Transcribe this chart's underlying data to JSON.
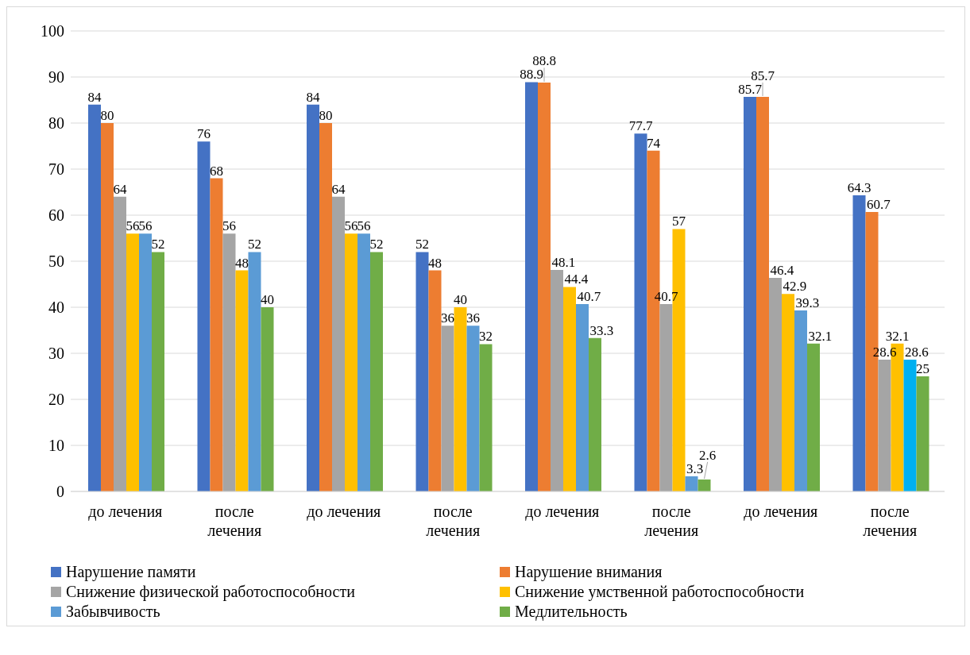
{
  "chart_data": {
    "type": "bar",
    "categories": [
      "до лечения",
      "после лечения",
      "до лечения",
      "после лечения",
      "до лечения",
      "после лечения",
      "до лечения",
      "после лечения"
    ],
    "series": [
      {
        "name": "Нарушение памяти",
        "color": "#4472c4",
        "values": [
          84,
          76,
          84,
          52,
          88.9,
          77.7,
          85.7,
          64.3
        ]
      },
      {
        "name": "Нарушение внимания",
        "color": "#ed7d31",
        "values": [
          80,
          68,
          80,
          48,
          88.8,
          74,
          85.7,
          60.7
        ]
      },
      {
        "name": "Снижение физической работоспособности",
        "color": "#a5a5a5",
        "values": [
          64,
          56,
          64,
          36,
          48.1,
          40.7,
          46.4,
          28.6
        ]
      },
      {
        "name": "Снижение умственной работоспособности",
        "color": "#ffc000",
        "values": [
          56,
          48,
          56,
          40,
          44.4,
          57,
          42.9,
          32.1
        ]
      },
      {
        "name": "Забывчивость",
        "color": "#5b9bd5",
        "colors": [
          "#5b9bd5",
          "#5b9bd5",
          "#5b9bd5",
          "#5b9bd5",
          "#5b9bd5",
          "#5b9bd5",
          "#5b9bd5",
          "#00b0f0"
        ],
        "values": [
          56,
          52,
          56,
          36,
          40.7,
          3.3,
          39.3,
          28.6
        ]
      },
      {
        "name": "Медлительность",
        "color": "#70ad47",
        "values": [
          52,
          40,
          52,
          32,
          33.3,
          2.6,
          32.1,
          25
        ]
      }
    ],
    "ylim": [
      0,
      100
    ],
    "yticks": [
      0,
      10,
      20,
      30,
      40,
      50,
      60,
      70,
      80,
      90,
      100
    ],
    "grid": "y",
    "legend": "bottom",
    "data_labels": true
  }
}
